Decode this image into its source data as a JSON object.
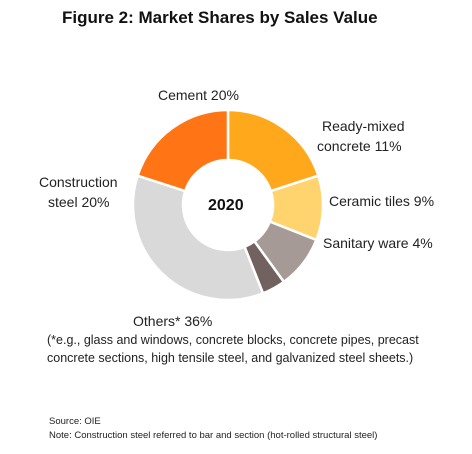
{
  "title": "Figure 2: Market Shares by Sales Value",
  "chart_data": {
    "type": "pie",
    "title": "Figure 2: Market Shares by Sales Value",
    "center_label": "2020",
    "slices": [
      {
        "name": "Cement",
        "value": 20,
        "color": "#FFA81C"
      },
      {
        "name": "Ready-mixed concrete",
        "value": 11,
        "color": "#FFD36E"
      },
      {
        "name": "Ceramic tiles",
        "value": 9,
        "color": "#A69A97"
      },
      {
        "name": "Sanitary ware",
        "value": 4,
        "color": "#71625F"
      },
      {
        "name": "Others*",
        "value": 36,
        "color": "#D9D9D9"
      },
      {
        "name": "Construction steel",
        "value": 20,
        "color": "#FF7516"
      }
    ]
  },
  "labels": {
    "cement": "Cement 20%",
    "ready_line1": "Ready-mixed",
    "ready_line2": "concrete 11%",
    "ceramic": "Ceramic tiles 9%",
    "sanitary": "Sanitary ware 4%",
    "construction_line1": "Construction",
    "construction_line2": "steel 20%",
    "others": "Others* 36%"
  },
  "footnote_line1": "(*e.g., glass and windows, concrete blocks, concrete pipes, precast",
  "footnote_line2": "concrete sections, high tensile steel, and galvanized steel sheets.)",
  "source": "Source: OIE",
  "note": "Note:  Construction steel referred to bar and section (hot-rolled structural steel)"
}
